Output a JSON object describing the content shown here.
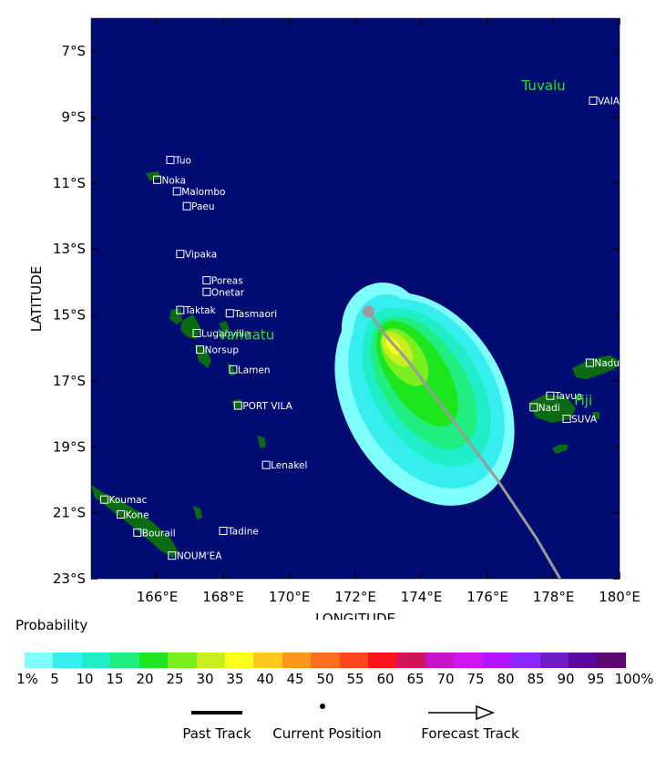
{
  "axes": {
    "xlabel": "LONGITUDE",
    "ylabel": "LATITUDE",
    "lon_range": [
      164,
      180
    ],
    "lat_range": [
      -23,
      -6
    ],
    "lon_ticks": [
      {
        "value": 166,
        "label": "166°E"
      },
      {
        "value": 168,
        "label": "168°E"
      },
      {
        "value": 170,
        "label": "170°E"
      },
      {
        "value": 172,
        "label": "172°E"
      },
      {
        "value": 174,
        "label": "174°E"
      },
      {
        "value": 176,
        "label": "176°E"
      },
      {
        "value": 178,
        "label": "178°E"
      },
      {
        "value": 180,
        "label": "180°E"
      }
    ],
    "lat_ticks": [
      {
        "value": -7,
        "label": "7°S"
      },
      {
        "value": -9,
        "label": "9°S"
      },
      {
        "value": -11,
        "label": "11°S"
      },
      {
        "value": -13,
        "label": "13°S"
      },
      {
        "value": -15,
        "label": "15°S"
      },
      {
        "value": -17,
        "label": "17°S"
      },
      {
        "value": -19,
        "label": "19°S"
      },
      {
        "value": -21,
        "label": "21°S"
      },
      {
        "value": -23,
        "label": "23°S"
      }
    ]
  },
  "colors": {
    "ocean": "#000c72",
    "land": "#0a6b12",
    "country_label": "#1ee61e",
    "track": "#9a9a9a"
  },
  "countries": [
    {
      "name": "Tuvalu",
      "lon": 177.7,
      "lat": -8.05
    },
    {
      "name": "Vanuatu",
      "lon": 168.7,
      "lat": -15.6
    },
    {
      "name": "Fiji",
      "lon": 178.9,
      "lat": -17.6
    }
  ],
  "places": [
    {
      "name": "VAIAKU",
      "lon": 179.2,
      "lat": -8.5
    },
    {
      "name": "Tuo",
      "lon": 166.4,
      "lat": -10.3
    },
    {
      "name": "Noka",
      "lon": 166.0,
      "lat": -10.9
    },
    {
      "name": "Malombo",
      "lon": 166.6,
      "lat": -11.25
    },
    {
      "name": "Paeu",
      "lon": 166.9,
      "lat": -11.7
    },
    {
      "name": "Vipaka",
      "lon": 166.7,
      "lat": -13.15
    },
    {
      "name": "Poreas",
      "lon": 167.5,
      "lat": -13.95
    },
    {
      "name": "Onetar",
      "lon": 167.5,
      "lat": -14.3
    },
    {
      "name": "Taktak",
      "lon": 166.7,
      "lat": -14.85
    },
    {
      "name": "Tasmaori",
      "lon": 168.2,
      "lat": -14.95
    },
    {
      "name": "Luganville",
      "lon": 167.2,
      "lat": -15.55
    },
    {
      "name": "Norsup",
      "lon": 167.3,
      "lat": -16.05
    },
    {
      "name": "Lamen",
      "lon": 168.3,
      "lat": -16.65
    },
    {
      "name": "PORT VILA",
      "lon": 168.45,
      "lat": -17.75
    },
    {
      "name": "Lenakel",
      "lon": 169.3,
      "lat": -19.55
    },
    {
      "name": "Koumac",
      "lon": 164.4,
      "lat": -20.6
    },
    {
      "name": "Kone",
      "lon": 164.9,
      "lat": -21.05
    },
    {
      "name": "Bourail",
      "lon": 165.4,
      "lat": -21.6
    },
    {
      "name": "Tadine",
      "lon": 168.0,
      "lat": -21.55
    },
    {
      "name": "NOUM'EA",
      "lon": 166.45,
      "lat": -22.3
    },
    {
      "name": "Naduri",
      "lon": 179.1,
      "lat": -16.45
    },
    {
      "name": "Tavua",
      "lon": 177.9,
      "lat": -17.45
    },
    {
      "name": "Nadi",
      "lon": 177.4,
      "lat": -17.8
    },
    {
      "name": "SUVA",
      "lon": 178.4,
      "lat": -18.15
    }
  ],
  "track": {
    "current": {
      "lon": 172.4,
      "lat": -14.9
    },
    "forecast": [
      {
        "lon": 172.4,
        "lat": -14.9
      },
      {
        "lon": 172.9,
        "lat": -15.6
      },
      {
        "lon": 173.6,
        "lat": -16.4
      },
      {
        "lon": 174.8,
        "lat": -18.0
      },
      {
        "lon": 176.3,
        "lat": -20.0
      },
      {
        "lon": 177.5,
        "lat": -21.8
      },
      {
        "lon": 178.2,
        "lat": -23.0
      }
    ]
  },
  "legend": {
    "title": "Probability",
    "colors": [
      "#80ffff",
      "#36eeee",
      "#20eec8",
      "#20ee80",
      "#1ee61e",
      "#7aee1e",
      "#c8ee1e",
      "#ffff1e",
      "#ffc81e",
      "#ff961e",
      "#ff6e1e",
      "#ff461e",
      "#ff141e",
      "#d2145a",
      "#c814c8",
      "#d214f0",
      "#b414ff",
      "#8c28ff",
      "#6e1ec8",
      "#5a0aa0",
      "#5a0a6e"
    ],
    "labels": [
      "1%",
      "5",
      "10",
      "15",
      "20",
      "25",
      "30",
      "35",
      "40",
      "45",
      "50",
      "55",
      "60",
      "65",
      "70",
      "75",
      "80",
      "85",
      "90",
      "95",
      "100%"
    ]
  },
  "key": {
    "past_track": "Past Track",
    "current_position": "Current Position",
    "forecast_track": "Forecast Track"
  }
}
